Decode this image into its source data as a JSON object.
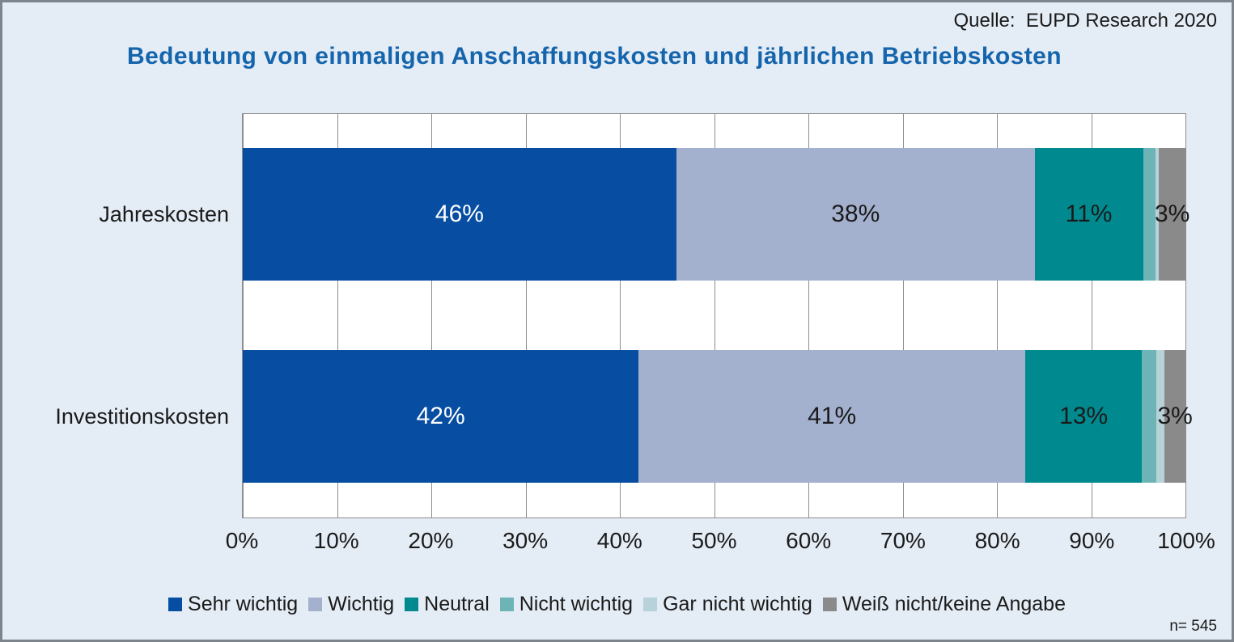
{
  "header": {
    "source": "Quelle:  EUPD Research 2020",
    "title": "Bedeutung von einmaligen Anschaffungskosten und jährlichen Betriebskosten",
    "title_color": "#1565ad"
  },
  "chart_data": {
    "type": "bar",
    "subtype": "horizontal-stacked-100pct",
    "title": "Bedeutung von einmaligen Anschaffungskosten und jährlichen Betriebskosten",
    "categories": [
      "Jahreskosten",
      "Investitionskosten"
    ],
    "unit": "%",
    "series": [
      {
        "name": "Sehr wichtig",
        "color": "#074ea2",
        "values": [
          46,
          42
        ],
        "data_labels": [
          "46%",
          "42%"
        ],
        "render_widths": [
          46,
          42
        ],
        "label_color": "#ffffff"
      },
      {
        "name": "Wichtig",
        "color": "#a4b1ce",
        "values": [
          38,
          41
        ],
        "data_labels": [
          "38%",
          "41%"
        ],
        "render_widths": [
          38,
          41
        ],
        "label_color": "#1a1a1a"
      },
      {
        "name": "Neutral",
        "color": "#00898e",
        "values": [
          11,
          13
        ],
        "data_labels": [
          "11%",
          "13%"
        ],
        "render_widths": [
          11.5,
          12.4
        ],
        "label_color": "#1a1a1a"
      },
      {
        "name": "Nicht wichtig",
        "color": "#6db4b6",
        "values": [
          1,
          1
        ],
        "data_labels": [
          "",
          ""
        ],
        "render_widths": [
          1.3,
          1.5
        ],
        "label_color": "#1a1a1a"
      },
      {
        "name": "Gar nicht wichtig",
        "color": "#b7d3d9",
        "values": [
          1,
          1
        ],
        "data_labels": [
          "",
          ""
        ],
        "render_widths": [
          0.4,
          0.9
        ],
        "label_color": "#1a1a1a"
      },
      {
        "name": "Weiß nicht/keine Angabe",
        "color": "#8a8a8a",
        "values": [
          3,
          3
        ],
        "data_labels": [
          "3%",
          "3%"
        ],
        "render_widths": [
          2.8,
          2.2
        ],
        "label_color": "#1a1a1a"
      }
    ],
    "x_axis": {
      "min": 0,
      "max": 100,
      "grid": true,
      "tick_labels": [
        "0%",
        "10%",
        "20%",
        "30%",
        "40%",
        "50%",
        "60%",
        "70%",
        "80%",
        "90%",
        "100%"
      ]
    },
    "legend_position": "bottom"
  },
  "footer": {
    "n_label": "n= 545"
  },
  "colors": {
    "background": "#e4ecf5",
    "frame_border": "#7d848c",
    "plot_background": "#ffffff",
    "plot_border": "#8e8e8e",
    "gridline": "#8e8e8e",
    "text": "#1a1a1a"
  }
}
